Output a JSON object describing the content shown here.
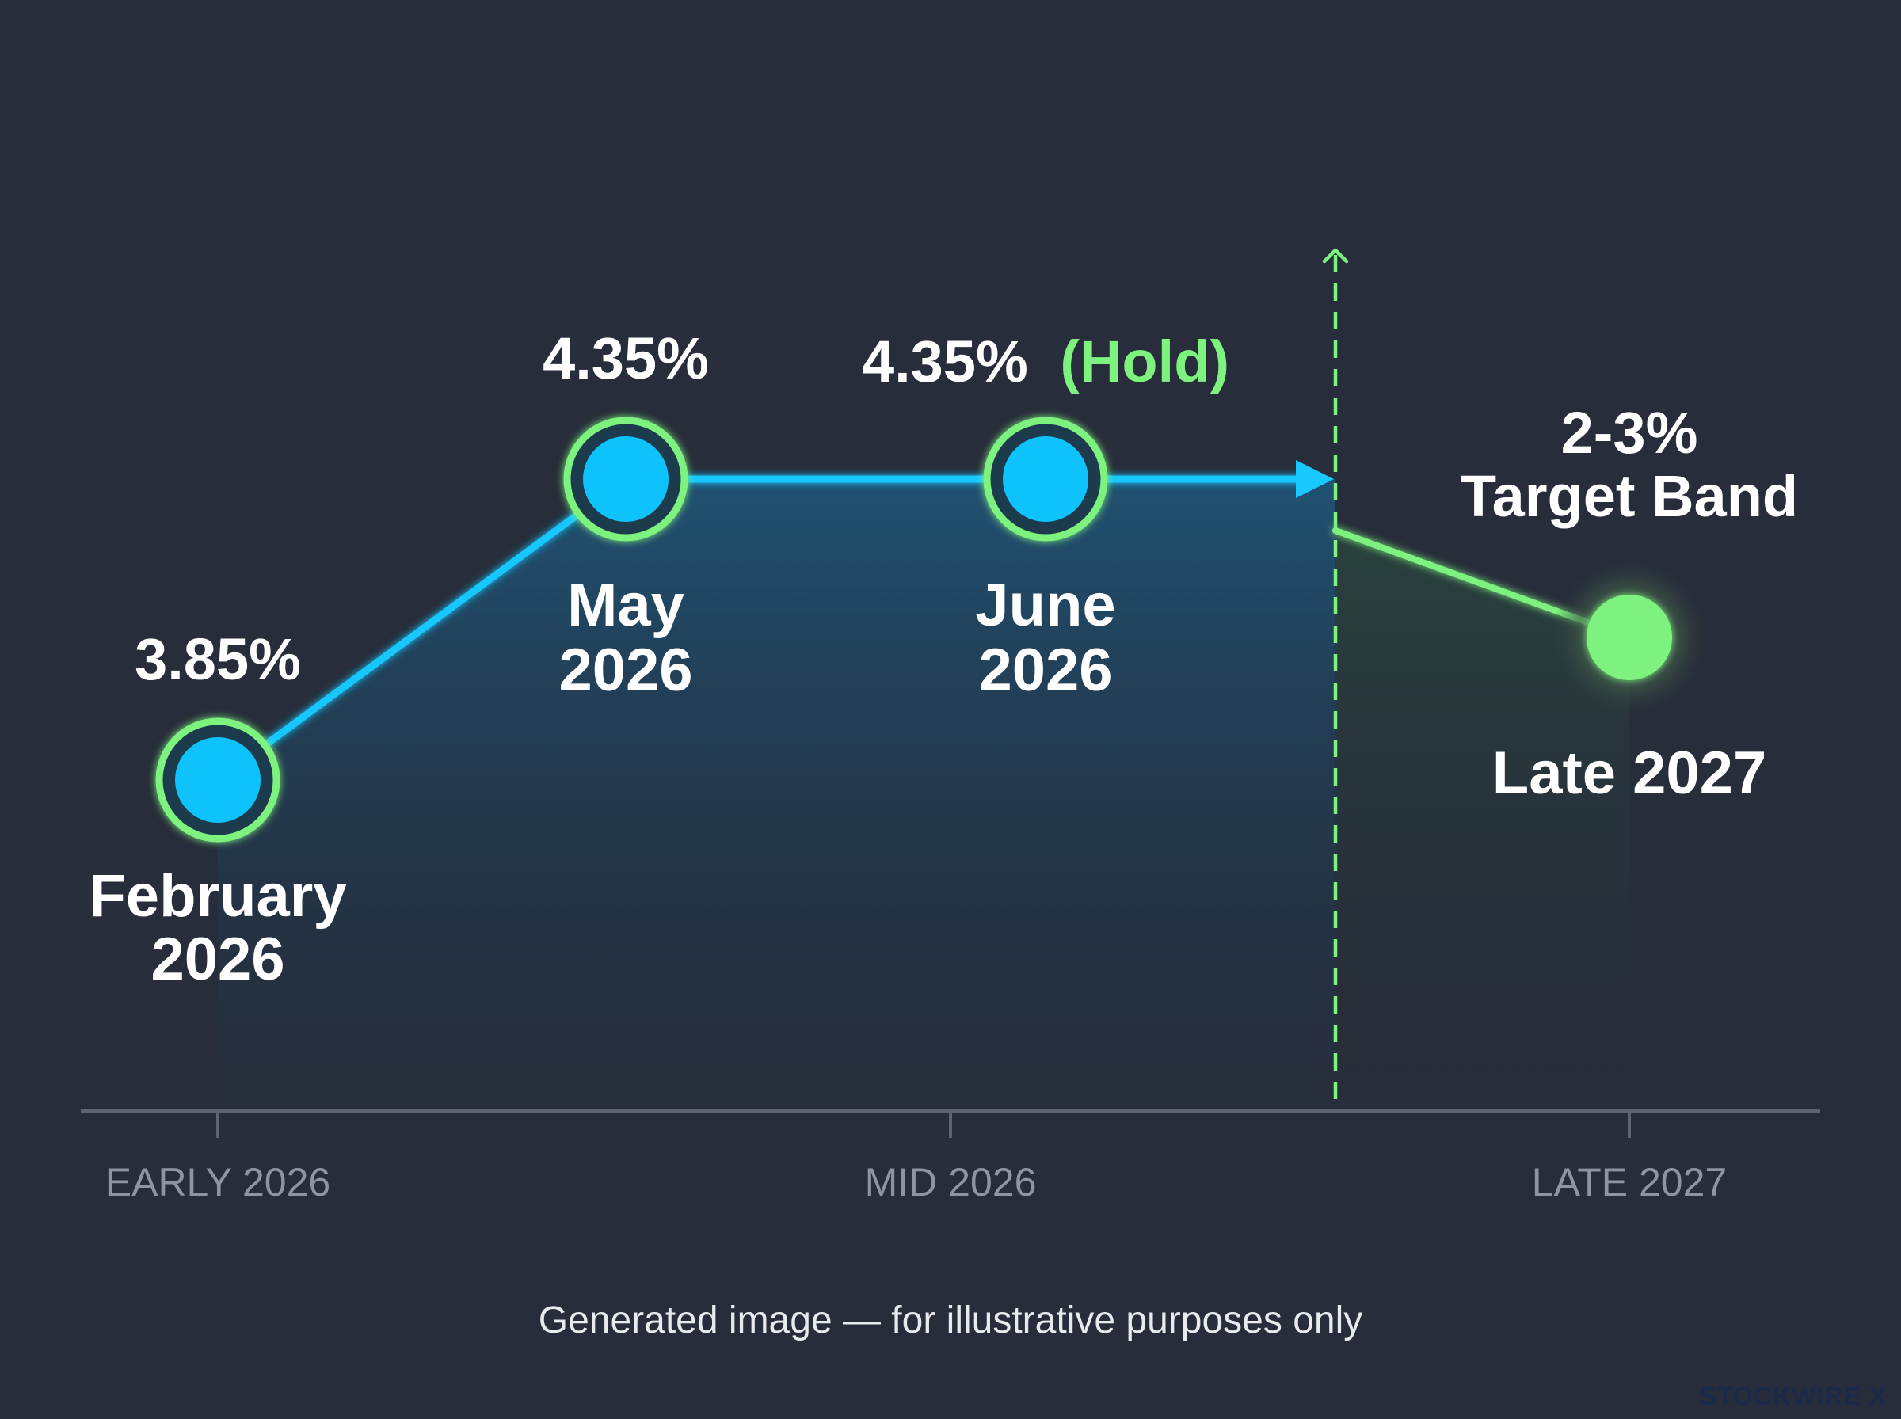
{
  "chart_data": {
    "type": "line",
    "x_axis_ticks": [
      "EARLY 2026",
      "MID 2026",
      "LATE 2027"
    ],
    "points": [
      {
        "label_line1": "February",
        "label_line2": "2026",
        "value": 3.85,
        "value_label": "3.85%"
      },
      {
        "label_line1": "May",
        "label_line2": "2026",
        "value": 4.35,
        "value_label": "4.35%"
      },
      {
        "label_line1": "June",
        "label_line2": "2026",
        "value": 4.35,
        "value_label": "4.35%",
        "value_note": "(Hold)"
      }
    ],
    "target": {
      "label": "Late 2027",
      "value_range": [
        2,
        3
      ],
      "value_label_line1": "2-3%",
      "value_label_line2": "Target Band"
    },
    "colors": {
      "background": "#272d3a",
      "actual_line": "#18c8ff",
      "marker_fill": "#0ec2fb",
      "marker_ring": "#7df27e",
      "target": "#7df27e",
      "axis": "#5d6370",
      "tick_label": "#8e94a1"
    },
    "grid": false
  },
  "footnote": "Generated image — for illustrative purposes only",
  "brand": "STOCKWIRE X"
}
